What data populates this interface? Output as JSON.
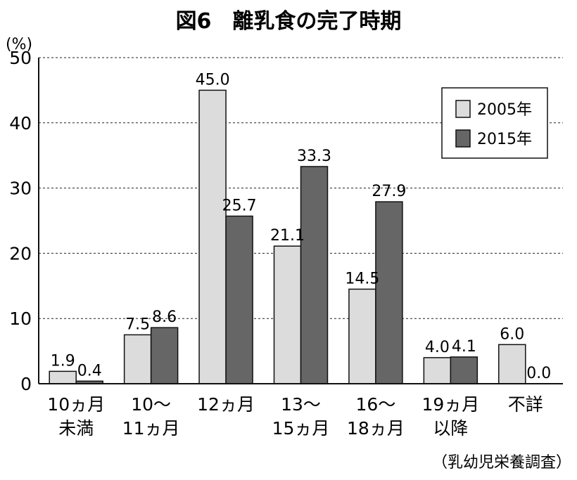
{
  "chart_data": {
    "type": "bar",
    "title": "図6　離乳食の完了時期",
    "y_unit": "(%)",
    "ylim": [
      0,
      50
    ],
    "y_ticks": [
      0,
      10,
      20,
      30,
      40,
      50
    ],
    "categories": [
      [
        "10ヵ月",
        "未満"
      ],
      [
        "10〜",
        "11ヵ月"
      ],
      [
        "12ヵ月"
      ],
      [
        "13〜",
        "15ヵ月"
      ],
      [
        "16〜",
        "18ヵ月"
      ],
      [
        "19ヵ月",
        "以降"
      ],
      [
        "不詳"
      ]
    ],
    "series": [
      {
        "name": "2005年",
        "color": "#dcdcdc",
        "values": [
          1.9,
          7.5,
          45.0,
          21.1,
          14.5,
          4.0,
          6.0
        ],
        "labels": [
          "1.9",
          "7.5",
          "45.0",
          "21.1",
          "14.5",
          "4.0",
          "6.0"
        ]
      },
      {
        "name": "2015年",
        "color": "#666666",
        "values": [
          0.4,
          8.6,
          25.7,
          33.3,
          27.9,
          4.1,
          0.0
        ],
        "labels": [
          "0.4",
          "8.6",
          "25.7",
          "33.3",
          "27.9",
          "4.1",
          "0.0"
        ]
      }
    ],
    "grid": true,
    "legend_position": "top-right",
    "source": "（乳幼児栄養調査）"
  }
}
